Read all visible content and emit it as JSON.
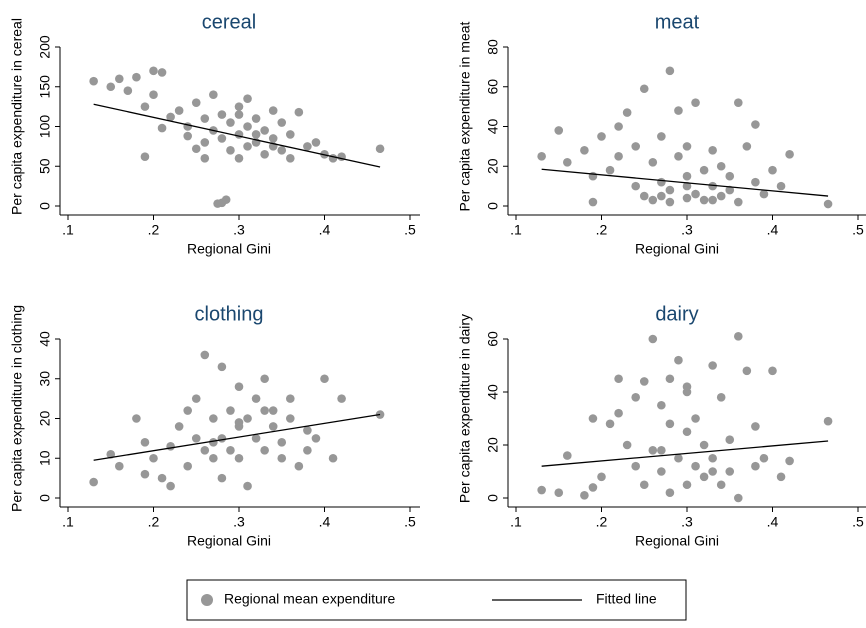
{
  "chart_data": [
    {
      "type": "scatter",
      "title": "cereal",
      "xlabel": "Regional Gini",
      "ylabel": "Per capita expenditure in cereal",
      "xlim": [
        0.1,
        0.5
      ],
      "ylim": [
        0,
        200
      ],
      "xticks": [
        {
          "value": 0.1,
          "label": ".1"
        },
        {
          "value": 0.2,
          "label": ".2"
        },
        {
          "value": 0.3,
          "label": ".3"
        },
        {
          "value": 0.4,
          "label": ".4"
        },
        {
          "value": 0.5,
          "label": ".5"
        }
      ],
      "yticks": [
        0,
        50,
        100,
        150,
        200
      ],
      "series": [
        {
          "x": [
            0.13,
            0.15,
            0.16,
            0.17,
            0.18,
            0.19,
            0.2,
            0.2,
            0.21,
            0.22,
            0.19,
            0.21,
            0.23,
            0.24,
            0.25,
            0.25,
            0.26,
            0.26,
            0.27,
            0.27,
            0.28,
            0.28,
            0.28,
            0.29,
            0.29,
            0.3,
            0.3,
            0.3,
            0.31,
            0.31,
            0.31,
            0.32,
            0.32,
            0.33,
            0.33,
            0.34,
            0.34,
            0.35,
            0.35,
            0.36,
            0.36,
            0.37,
            0.38,
            0.39,
            0.4,
            0.41,
            0.42,
            0.465,
            0.275,
            0.285,
            0.24,
            0.26,
            0.3,
            0.32,
            0.34
          ],
          "values": [
            157,
            150,
            160,
            145,
            162,
            125,
            170,
            140,
            168,
            112,
            62,
            98,
            120,
            88,
            130,
            72,
            110,
            60,
            95,
            140,
            85,
            115,
            4,
            105,
            70,
            125,
            90,
            60,
            100,
            75,
            135,
            80,
            110,
            95,
            65,
            120,
            85,
            70,
            105,
            90,
            60,
            118,
            75,
            80,
            65,
            60,
            62,
            72,
            3,
            8,
            100,
            80,
            115,
            90,
            75
          ]
        },
        {
          "x": [
            0.13,
            0.465
          ],
          "values": [
            128,
            49
          ]
        }
      ]
    },
    {
      "type": "scatter",
      "title": "meat",
      "xlabel": "Regional Gini",
      "ylabel": "Per capita expenditure in meat",
      "xlim": [
        0.1,
        0.5
      ],
      "ylim": [
        0,
        80
      ],
      "xticks": [
        {
          "value": 0.1,
          "label": ".1"
        },
        {
          "value": 0.2,
          "label": ".2"
        },
        {
          "value": 0.3,
          "label": ".3"
        },
        {
          "value": 0.4,
          "label": ".4"
        },
        {
          "value": 0.5,
          "label": ".5"
        }
      ],
      "yticks": [
        0,
        20,
        40,
        60,
        80
      ],
      "series": [
        {
          "x": [
            0.13,
            0.15,
            0.16,
            0.18,
            0.19,
            0.2,
            0.21,
            0.22,
            0.23,
            0.24,
            0.24,
            0.25,
            0.25,
            0.26,
            0.26,
            0.27,
            0.27,
            0.28,
            0.28,
            0.28,
            0.29,
            0.29,
            0.3,
            0.3,
            0.3,
            0.31,
            0.31,
            0.32,
            0.32,
            0.33,
            0.33,
            0.34,
            0.34,
            0.35,
            0.35,
            0.36,
            0.36,
            0.37,
            0.38,
            0.38,
            0.39,
            0.4,
            0.41,
            0.42,
            0.465,
            0.19,
            0.22,
            0.27,
            0.3,
            0.33
          ],
          "values": [
            25,
            38,
            22,
            28,
            2,
            35,
            18,
            40,
            47,
            10,
            30,
            59,
            5,
            22,
            3,
            12,
            35,
            68,
            8,
            2,
            25,
            48,
            15,
            4,
            30,
            52,
            6,
            18,
            3,
            28,
            10,
            5,
            20,
            8,
            15,
            52,
            2,
            30,
            12,
            41,
            6,
            18,
            10,
            26,
            1,
            15,
            25,
            5,
            10,
            3
          ]
        },
        {
          "x": [
            0.13,
            0.465
          ],
          "values": [
            18.5,
            5
          ]
        }
      ]
    },
    {
      "type": "scatter",
      "title": "clothing",
      "xlabel": "Regional Gini",
      "ylabel": "Per capita expenditure in clothing",
      "xlim": [
        0.1,
        0.5
      ],
      "ylim": [
        0,
        40
      ],
      "xticks": [
        {
          "value": 0.1,
          "label": ".1"
        },
        {
          "value": 0.2,
          "label": ".2"
        },
        {
          "value": 0.3,
          "label": ".3"
        },
        {
          "value": 0.4,
          "label": ".4"
        },
        {
          "value": 0.5,
          "label": ".5"
        }
      ],
      "yticks": [
        0,
        10,
        20,
        30,
        40
      ],
      "series": [
        {
          "x": [
            0.13,
            0.15,
            0.16,
            0.18,
            0.19,
            0.2,
            0.21,
            0.22,
            0.23,
            0.24,
            0.24,
            0.25,
            0.25,
            0.26,
            0.26,
            0.27,
            0.27,
            0.28,
            0.28,
            0.28,
            0.29,
            0.29,
            0.3,
            0.3,
            0.3,
            0.31,
            0.31,
            0.32,
            0.32,
            0.33,
            0.33,
            0.34,
            0.34,
            0.35,
            0.35,
            0.36,
            0.36,
            0.37,
            0.38,
            0.38,
            0.39,
            0.4,
            0.41,
            0.42,
            0.465,
            0.19,
            0.22,
            0.27,
            0.3,
            0.33
          ],
          "values": [
            4,
            11,
            8,
            20,
            14,
            10,
            5,
            13,
            18,
            22,
            8,
            25,
            15,
            12,
            36,
            10,
            20,
            33,
            15,
            5,
            22,
            12,
            28,
            18,
            10,
            20,
            3,
            25,
            15,
            12,
            30,
            18,
            22,
            10,
            14,
            20,
            25,
            8,
            17,
            12,
            15,
            30,
            10,
            25,
            21,
            6,
            3,
            14,
            19,
            22
          ]
        },
        {
          "x": [
            0.13,
            0.465
          ],
          "values": [
            9.5,
            21
          ]
        }
      ]
    },
    {
      "type": "scatter",
      "title": "dairy",
      "xlabel": "Regional Gini",
      "ylabel": "Per capita expenditure in dairy",
      "xlim": [
        0.1,
        0.5
      ],
      "ylim": [
        0,
        60
      ],
      "xticks": [
        {
          "value": 0.1,
          "label": ".1"
        },
        {
          "value": 0.2,
          "label": ".2"
        },
        {
          "value": 0.3,
          "label": ".3"
        },
        {
          "value": 0.4,
          "label": ".4"
        },
        {
          "value": 0.5,
          "label": ".5"
        }
      ],
      "yticks": [
        0,
        20,
        40,
        60
      ],
      "series": [
        {
          "x": [
            0.13,
            0.15,
            0.16,
            0.18,
            0.19,
            0.2,
            0.21,
            0.22,
            0.23,
            0.24,
            0.24,
            0.25,
            0.25,
            0.26,
            0.26,
            0.27,
            0.27,
            0.28,
            0.28,
            0.28,
            0.29,
            0.29,
            0.3,
            0.3,
            0.3,
            0.31,
            0.31,
            0.32,
            0.32,
            0.33,
            0.33,
            0.34,
            0.34,
            0.35,
            0.35,
            0.36,
            0.36,
            0.37,
            0.38,
            0.38,
            0.39,
            0.4,
            0.41,
            0.42,
            0.465,
            0.19,
            0.22,
            0.27,
            0.3,
            0.33
          ],
          "values": [
            3,
            2,
            16,
            1,
            30,
            8,
            28,
            45,
            20,
            12,
            38,
            44,
            5,
            18,
            60,
            10,
            35,
            2,
            28,
            45,
            15,
            52,
            25,
            5,
            40,
            12,
            30,
            8,
            20,
            50,
            15,
            5,
            38,
            22,
            10,
            61,
            0,
            48,
            12,
            27,
            15,
            48,
            8,
            14,
            29,
            4,
            32,
            18,
            42,
            10
          ]
        },
        {
          "x": [
            0.13,
            0.465
          ],
          "values": [
            12,
            21.5
          ]
        }
      ]
    }
  ],
  "legend": {
    "position": "bottom",
    "items": [
      {
        "name": "Regional mean expenditure",
        "color": "#979797",
        "marker": "circle"
      },
      {
        "name": "Fitted line",
        "color": "#000000",
        "marker": "line"
      }
    ]
  }
}
